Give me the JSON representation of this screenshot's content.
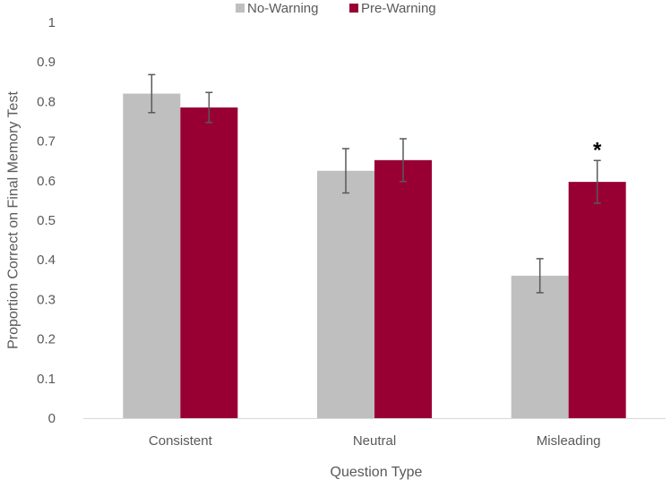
{
  "chart_data": {
    "type": "bar",
    "categories": [
      "Consistent",
      "Neutral",
      "Misleading"
    ],
    "series": [
      {
        "name": "No-Warning",
        "color": "#bfbfbf",
        "values": [
          0.82,
          0.625,
          0.36
        ],
        "error": [
          0.048,
          0.056,
          0.043
        ]
      },
      {
        "name": "Pre-Warning",
        "color": "#980034",
        "values": [
          0.785,
          0.652,
          0.597
        ],
        "error": [
          0.038,
          0.054,
          0.054
        ]
      }
    ],
    "annotations": [
      {
        "text": "*",
        "category": "Misleading",
        "series": "Pre-Warning"
      }
    ],
    "xlabel": "Question Type",
    "ylabel": "Proportion Correct on Final Memory Test",
    "ylim": [
      0,
      1
    ],
    "yticks": [
      "0",
      "0.1",
      "0.2",
      "0.3",
      "0.4",
      "0.5",
      "0.6",
      "0.7",
      "0.8",
      "0.9",
      "1"
    ],
    "grid": false,
    "legend_position": "top"
  }
}
